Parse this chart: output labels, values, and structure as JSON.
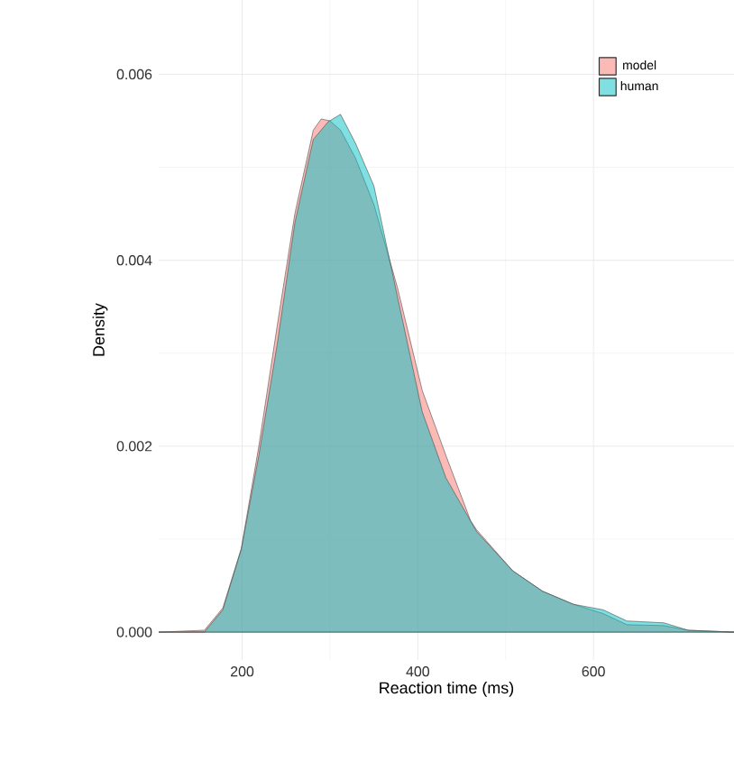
{
  "chart_data": {
    "type": "area",
    "xlabel": "Reaction time (ms)",
    "ylabel": "Density",
    "xlim": [
      105,
      760
    ],
    "ylim": [
      -0.0003,
      0.0068
    ],
    "xticks": [
      200,
      400,
      600
    ],
    "yticks": [
      {
        "value": 0,
        "label": "0.000"
      },
      {
        "value": 0.002,
        "label": "0.002"
      },
      {
        "value": 0.004,
        "label": "0.004"
      },
      {
        "value": 0.006,
        "label": "0.006"
      }
    ],
    "grid": true,
    "legend": "top right",
    "series": [
      {
        "name": "model",
        "color": "#f8766d",
        "x": [
          105,
          157,
          178,
          199,
          219,
          240,
          260,
          281,
          290,
          300,
          312,
          329,
          350,
          377,
          405,
          432,
          460,
          467,
          508,
          542,
          577,
          611,
          638,
          680,
          708,
          760
        ],
        "values": [
          0,
          2e-05,
          0.00026,
          0.0009,
          0.002,
          0.0033,
          0.0045,
          0.0054,
          0.00552,
          0.0055,
          0.0054,
          0.0051,
          0.0046,
          0.0037,
          0.0026,
          0.0019,
          0.0012,
          0.0011,
          0.00066,
          0.00044,
          0.0003,
          0.0002,
          8e-05,
          7e-05,
          2e-05,
          0
        ]
      },
      {
        "name": "human",
        "color": "#00bfc4",
        "x": [
          105,
          157,
          178,
          199,
          219,
          240,
          260,
          281,
          298,
          312,
          329,
          350,
          377,
          405,
          432,
          467,
          508,
          542,
          577,
          611,
          638,
          680,
          708,
          760
        ],
        "values": [
          0,
          0,
          0.00024,
          0.00089,
          0.0019,
          0.0031,
          0.0044,
          0.0053,
          0.00549,
          0.00557,
          0.00526,
          0.0048,
          0.0036,
          0.00237,
          0.00166,
          0.00108,
          0.00066,
          0.00044,
          0.0003,
          0.00024,
          0.00012,
          0.0001,
          2e-05,
          0
        ]
      }
    ]
  }
}
